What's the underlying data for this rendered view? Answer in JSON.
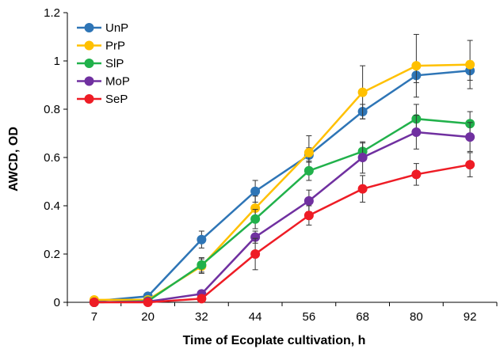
{
  "chart_data": {
    "type": "line",
    "title": "",
    "xlabel": "Time of Ecoplate cultivation, h",
    "ylabel": "AWCD, OD",
    "categories": [
      "7",
      "20",
      "32",
      "44",
      "56",
      "68",
      "80",
      "92"
    ],
    "ylim": [
      0,
      1.2
    ],
    "yticks": [
      "0",
      "0.2",
      "0.4",
      "0.6",
      "0.8",
      "1",
      "1.2"
    ],
    "grid": false,
    "legend_position": "top-left",
    "series": [
      {
        "name": "UnP",
        "color": "#2E75B6",
        "values": [
          0.005,
          0.025,
          0.26,
          0.46,
          0.61,
          0.79,
          0.94,
          0.96
        ],
        "errors": [
          0.005,
          0.01,
          0.035,
          0.045,
          0.03,
          0.03,
          0.03,
          0.04
        ]
      },
      {
        "name": "PrP",
        "color": "#FFC000",
        "values": [
          0.01,
          0.01,
          0.15,
          0.39,
          0.62,
          0.87,
          0.98,
          0.985
        ],
        "errors": [
          0.005,
          0.005,
          0.03,
          0.05,
          0.07,
          0.11,
          0.13,
          0.1
        ]
      },
      {
        "name": "SlP",
        "color": "#21B14B",
        "values": [
          0.0,
          0.005,
          0.155,
          0.345,
          0.545,
          0.625,
          0.76,
          0.74
        ],
        "errors": [
          0.002,
          0.003,
          0.03,
          0.04,
          0.04,
          0.035,
          0.06,
          0.05
        ]
      },
      {
        "name": "MoP",
        "color": "#7030A0",
        "values": [
          0.0,
          0.003,
          0.035,
          0.27,
          0.42,
          0.6,
          0.705,
          0.685
        ],
        "errors": [
          0.002,
          0.003,
          0.015,
          0.025,
          0.045,
          0.065,
          0.07,
          0.06
        ]
      },
      {
        "name": "SeP",
        "color": "#EE1C25",
        "values": [
          0.0,
          0.0,
          0.015,
          0.2,
          0.36,
          0.47,
          0.53,
          0.57
        ],
        "errors": [
          0.002,
          0.002,
          0.01,
          0.065,
          0.04,
          0.055,
          0.045,
          0.05
        ]
      }
    ]
  }
}
